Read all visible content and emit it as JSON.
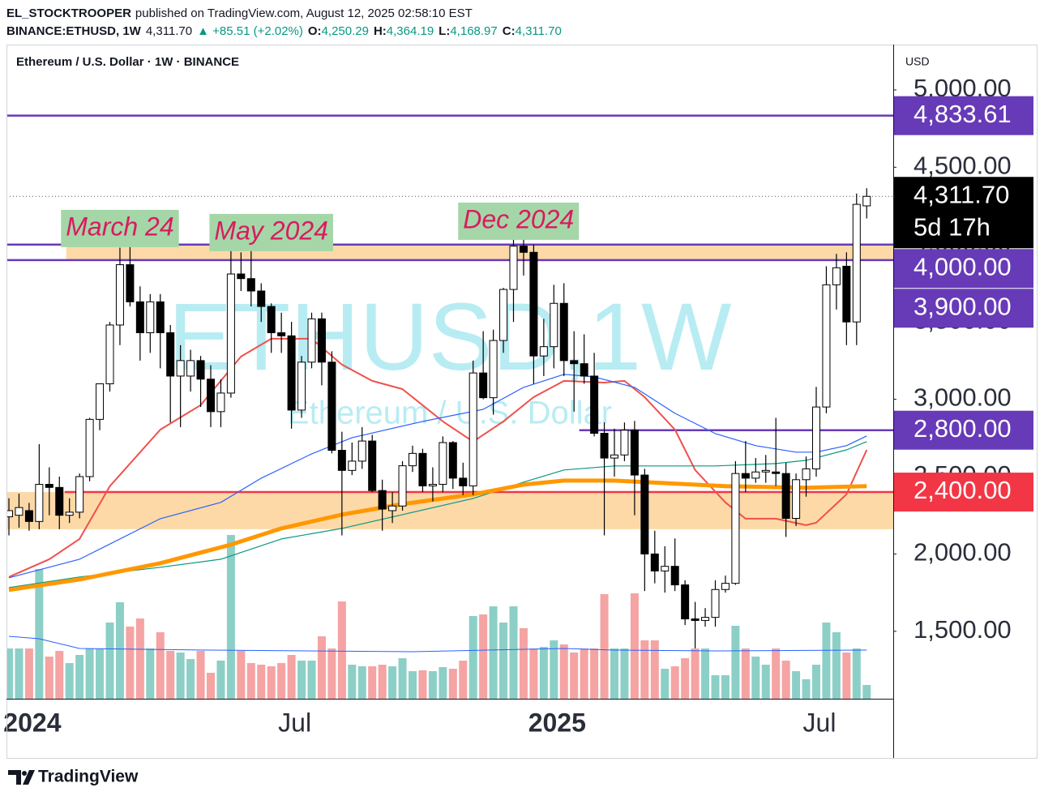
{
  "header": {
    "author": "EL_STOCKTROOPER",
    "published": "published on TradingView.com, August 12, 2025 02:58:10 EST",
    "symbol": "BINANCE:ETHUSD, 1W",
    "last": "4,311.70",
    "change": "▲ +85.51 (+2.02%)",
    "ohlc": [
      {
        "label": "O:",
        "value": "4,250.29"
      },
      {
        "label": "H:",
        "value": "4,364.19"
      },
      {
        "label": "L:",
        "value": "4,168.97"
      },
      {
        "label": "C:",
        "value": "4,311.70"
      }
    ]
  },
  "footer": {
    "brand": "TradingView"
  },
  "chart_data": {
    "type": "candlestick",
    "title": "Ethereum / U.S. Dollar · 1W · BINANCE",
    "currency": "USD",
    "watermark": "ETHUSD,1W",
    "watermark_subtitle": "Ethereum / U.S. Dollar",
    "categories": [
      null,
      null,
      "2024",
      null,
      null,
      null,
      null,
      null,
      null,
      null,
      null,
      null,
      null,
      null,
      null,
      null,
      null,
      null,
      null,
      null,
      null,
      null,
      null,
      null,
      null,
      null,
      null,
      null,
      "Jul",
      null,
      null,
      null,
      null,
      null,
      null,
      null,
      null,
      null,
      null,
      null,
      null,
      null,
      null,
      null,
      null,
      null,
      null,
      null,
      null,
      null,
      null,
      null,
      null,
      null,
      "2025",
      null,
      null,
      null,
      null,
      null,
      null,
      null,
      null,
      null,
      null,
      null,
      null,
      null,
      null,
      null,
      null,
      null,
      null,
      null,
      null,
      null,
      null,
      null,
      null,
      null,
      "Jul",
      null,
      null,
      null,
      null,
      null
    ],
    "open": [
      2240,
      2250,
      2280,
      2210,
      2450,
      2430,
      2250,
      2270,
      2500,
      2870,
      3100,
      3480,
      3870,
      3630,
      3430,
      3630,
      3430,
      3150,
      3150,
      3250,
      3130,
      2920,
      3040,
      3810,
      3780,
      3700,
      3600,
      3430,
      3410,
      2930,
      3240,
      3520,
      3240,
      2670,
      2540,
      2600,
      2730,
      2410,
      2280,
      2310,
      2570,
      2650,
      2440,
      2450,
      2720,
      2490,
      2440,
      3170,
      3010,
      3380,
      3710,
      3990,
      3950,
      3280,
      3340,
      3620,
      3250,
      3230,
      3150,
      2780,
      2620,
      2640,
      2800,
      2510,
      2000,
      1890,
      1920,
      1800,
      1580,
      1570,
      1590,
      1770,
      1810,
      2520,
      2490,
      2530,
      2530,
      2520,
      2230,
      2480,
      2550,
      2950,
      3740,
      3860,
      3500,
      4250.29
    ],
    "high": [
      2360,
      2390,
      2330,
      2710,
      2560,
      2500,
      2360,
      2520,
      2880,
      3100,
      3500,
      3980,
      4090,
      3730,
      3680,
      3680,
      3480,
      3350,
      3320,
      3280,
      3220,
      3130,
      3980,
      3950,
      3980,
      3750,
      3620,
      3560,
      3500,
      3280,
      3560,
      3560,
      3310,
      2790,
      2720,
      2820,
      2770,
      2480,
      2400,
      2600,
      2700,
      2680,
      2560,
      2760,
      2730,
      2590,
      3250,
      3440,
      3450,
      3720,
      4090,
      4110,
      4000,
      3520,
      3740,
      3750,
      3440,
      3420,
      3300,
      2850,
      2810,
      2850,
      2860,
      2550,
      2150,
      2050,
      2100,
      1830,
      1690,
      1650,
      1830,
      1860,
      2600,
      2730,
      2620,
      2640,
      2880,
      2590,
      2520,
      2630,
      3080,
      3860,
      3940,
      3950,
      4330,
      4364.19
    ],
    "low": [
      2120,
      2170,
      2150,
      2160,
      2250,
      2160,
      2200,
      2230,
      2470,
      2800,
      3050,
      3350,
      3600,
      3250,
      3300,
      3200,
      2850,
      2820,
      3050,
      2950,
      2820,
      2820,
      3010,
      3700,
      3600,
      3500,
      3300,
      3300,
      2810,
      2880,
      3200,
      3090,
      2650,
      2120,
      2510,
      2550,
      2400,
      2150,
      2200,
      2280,
      2530,
      2400,
      2340,
      2400,
      2420,
      2380,
      2380,
      3000,
      2900,
      3300,
      3500,
      3800,
      3100,
      3150,
      3200,
      3150,
      2920,
      3100,
      2760,
      2120,
      2500,
      2600,
      2250,
      1760,
      1810,
      1750,
      1760,
      1540,
      1390,
      1530,
      1530,
      1750,
      1800,
      2400,
      2460,
      2460,
      2440,
      2110,
      2180,
      2370,
      2500,
      2910,
      3580,
      3350,
      3350,
      4168.97
    ],
    "close": [
      2280,
      2300,
      2210,
      2450,
      2430,
      2250,
      2270,
      2500,
      2870,
      3100,
      3480,
      3870,
      3630,
      3430,
      3630,
      3430,
      3150,
      3250,
      3250,
      3130,
      2920,
      3040,
      3810,
      3780,
      3700,
      3600,
      3430,
      3410,
      2930,
      3240,
      3520,
      3240,
      2670,
      2540,
      2600,
      2730,
      2410,
      2290,
      2310,
      2570,
      2650,
      2440,
      2450,
      2720,
      2490,
      2440,
      3170,
      3010,
      3380,
      3710,
      3990,
      3950,
      3280,
      3340,
      3620,
      3250,
      3230,
      3150,
      2780,
      2620,
      2640,
      2800,
      2510,
      2000,
      1890,
      1920,
      1800,
      1580,
      1570,
      1590,
      1770,
      1810,
      2520,
      2490,
      2530,
      2540,
      2520,
      2230,
      2480,
      2550,
      2950,
      3740,
      3850,
      3500,
      4260,
      4311.7
    ],
    "volume": [
      620,
      620,
      620,
      1600,
      520,
      590,
      440,
      540,
      620,
      620,
      940,
      1190,
      890,
      990,
      620,
      820,
      590,
      570,
      490,
      590,
      320,
      470,
      2020,
      590,
      440,
      420,
      400,
      440,
      540,
      470,
      470,
      770,
      620,
      1200,
      420,
      400,
      400,
      420,
      400,
      500,
      340,
      350,
      340,
      390,
      370,
      470,
      1020,
      1040,
      1140,
      940,
      1140,
      870,
      620,
      640,
      720,
      670,
      570,
      620,
      620,
      1290,
      620,
      620,
      1300,
      720,
      720,
      370,
      400,
      500,
      620,
      620,
      290,
      290,
      900,
      620,
      520,
      420,
      620,
      470,
      340,
      240,
      420,
      940,
      820,
      570,
      620,
      170
    ],
    "volume_ylim": [
      0,
      8070
    ],
    "volume_ma": {
      "color": "#2962ff",
      "x": [
        0,
        3,
        7,
        20,
        40,
        55,
        60,
        70,
        85
      ],
      "values": [
        770,
        740,
        620,
        600,
        580,
        620,
        600,
        590,
        600
      ]
    },
    "up_color": "#ffffff",
    "down_color": "#000000",
    "volume_up_color": "#8ccfc6",
    "volume_down_color": "#f5a3a3",
    "moving_averages": [
      {
        "color": "#f0504c",
        "width": 2,
        "x": [
          0,
          4,
          7,
          10,
          15,
          19,
          23,
          26,
          30,
          33,
          36,
          39,
          43,
          46,
          49,
          52,
          55,
          59,
          61,
          63,
          66,
          68,
          71,
          73,
          76,
          79,
          80,
          83,
          85
        ],
        "values": [
          1851,
          1966,
          2097,
          2438,
          2804,
          2962,
          3276,
          3391,
          3391,
          3224,
          3119,
          3066,
          2857,
          2726,
          2857,
          3014,
          3119,
          3108,
          3119,
          3014,
          2804,
          2543,
          2333,
          2228,
          2228,
          2186,
          2202,
          2385,
          2673
        ]
      },
      {
        "color": "#2962ff",
        "width": 1.2,
        "x": [
          0,
          7,
          15,
          21,
          25,
          30,
          34,
          41,
          47,
          51,
          55,
          58,
          62,
          66,
          70,
          74,
          78,
          80,
          83,
          85
        ],
        "values": [
          1846,
          1966,
          2228,
          2333,
          2490,
          2647,
          2752,
          2857,
          2935,
          3077,
          3161,
          3145,
          3077,
          2909,
          2778,
          2700,
          2658,
          2658,
          2700,
          2763
        ]
      },
      {
        "color": "#089981",
        "width": 1.2,
        "x": [
          0,
          7,
          15,
          21,
          27,
          33,
          39,
          46,
          51,
          55,
          60,
          65,
          70,
          76,
          79,
          83,
          85
        ],
        "values": [
          1783,
          1851,
          1914,
          1966,
          2097,
          2165,
          2254,
          2359,
          2464,
          2543,
          2569,
          2569,
          2569,
          2584,
          2605,
          2673,
          2726
        ]
      },
      {
        "color": "#ff9800",
        "width": 5,
        "x": [
          0,
          7,
          15,
          22,
          27,
          33,
          39,
          46,
          51,
          55,
          60,
          63,
          71,
          79,
          85
        ],
        "values": [
          1767,
          1835,
          1940,
          2060,
          2165,
          2254,
          2322,
          2385,
          2448,
          2474,
          2474,
          2464,
          2438,
          2428,
          2438
        ]
      }
    ],
    "zones": [
      {
        "from": 3900,
        "to": 4000,
        "start": 6,
        "color": "#fdd9a8"
      },
      {
        "from": 2160,
        "to": 2400,
        "start": 0,
        "color": "#fdd9a8"
      }
    ],
    "levels": [
      {
        "value": 4833.61,
        "label": "4,833.61",
        "color": "#673ab7",
        "start": 0
      },
      {
        "value": 4000,
        "label": "4,000.00",
        "color": "#673ab7",
        "start": 0
      },
      {
        "value": 3900,
        "label": "3,900.00",
        "color": "#673ab7",
        "start": 0
      },
      {
        "value": 2800,
        "label": "2,800.00",
        "color": "#673ab7",
        "start": 57
      },
      {
        "value": 2400,
        "label": "2,400.00",
        "color": "#f23645",
        "start": 6
      }
    ],
    "last_price": {
      "value": 4311.7,
      "label": "4,311.70",
      "countdown": "5d 17h",
      "color": "#000000"
    },
    "annotations": [
      {
        "text": "March 24",
        "x": 11,
        "price": 4104
      },
      {
        "text": "May 2024",
        "x": 26,
        "price": 4078
      },
      {
        "text": "Dec 2024",
        "x": 50.5,
        "price": 4151
      }
    ],
    "ylim": [
      1064,
      5293
    ],
    "yticks": [
      {
        "value": 1500,
        "label": "1,500.00"
      },
      {
        "value": 2000,
        "label": "2,000.00"
      },
      {
        "value": 2500,
        "label": "2,500.00"
      },
      {
        "value": 3000,
        "label": "3,000.00"
      },
      {
        "value": 3500,
        "label": "3,500.00"
      },
      {
        "value": 4000,
        "label": "4,000.00"
      },
      {
        "value": 4500,
        "label": "4,500.00"
      },
      {
        "value": 5000,
        "label": "5,000.00"
      }
    ]
  }
}
